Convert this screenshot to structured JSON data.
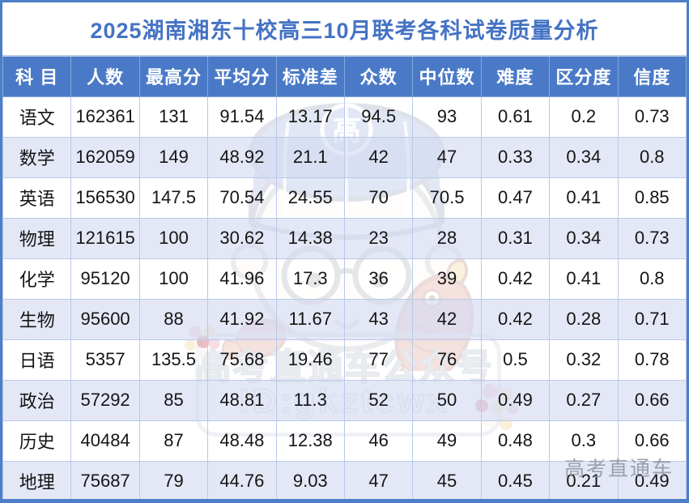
{
  "title": "2025湖南湘东十校高三10月联考各科试卷质量分析",
  "table": {
    "headers": [
      "科 目",
      "人数",
      "最高分",
      "平均分",
      "标准差",
      "众数",
      "中位数",
      "难度",
      "区分度",
      "信度"
    ],
    "rows": [
      [
        "语文",
        "162361",
        "131",
        "91.54",
        "13.17",
        "94.5",
        "93",
        "0.61",
        "0.2",
        "0.73"
      ],
      [
        "数学",
        "162059",
        "149",
        "48.92",
        "21.1",
        "42",
        "47",
        "0.33",
        "0.34",
        "0.8"
      ],
      [
        "英语",
        "156530",
        "147.5",
        "70.54",
        "24.55",
        "70",
        "70.5",
        "0.47",
        "0.41",
        "0.85"
      ],
      [
        "物理",
        "121615",
        "100",
        "30.62",
        "14.38",
        "23",
        "28",
        "0.31",
        "0.34",
        "0.73"
      ],
      [
        "化学",
        "95120",
        "100",
        "41.96",
        "17.3",
        "36",
        "39",
        "0.42",
        "0.41",
        "0.8"
      ],
      [
        "生物",
        "95600",
        "88",
        "41.92",
        "11.67",
        "43",
        "42",
        "0.42",
        "0.28",
        "0.71"
      ],
      [
        "日语",
        "5357",
        "135.5",
        "75.68",
        "19.46",
        "77",
        "76",
        "0.5",
        "0.32",
        "0.78"
      ],
      [
        "政治",
        "57292",
        "85",
        "48.81",
        "11.3",
        "52",
        "50",
        "0.49",
        "0.27",
        "0.66"
      ],
      [
        "历史",
        "40484",
        "87",
        "48.48",
        "12.38",
        "46",
        "49",
        "0.48",
        "0.3",
        "0.66"
      ],
      [
        "地理",
        "75687",
        "79",
        "44.76",
        "9.03",
        "47",
        "45",
        "0.45",
        "0.21",
        "0.49"
      ]
    ]
  },
  "watermark": {
    "brand_line1": "高考直通车公众号",
    "brand_line2": "ID:gkztcwx",
    "corner_brand": "高考直通车",
    "cap_badge_char": "高"
  },
  "colors": {
    "title_text": "#4472c4",
    "header_bg": "#4a7ac7",
    "header_text": "#ffffff",
    "row_stripe": "#dfe3f4",
    "cell_border": "#b9c9ea",
    "page_border": "#4d7ec8",
    "body_text": "#151515",
    "mascot_cap": "#5a79c4",
    "mascot_fish": "#c8503e"
  }
}
